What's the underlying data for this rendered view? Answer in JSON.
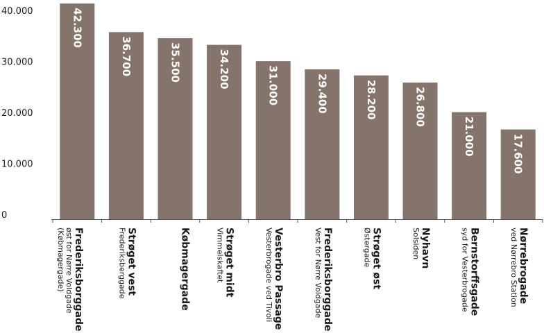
{
  "chart_data": {
    "type": "bar",
    "title": "",
    "xlabel": "",
    "ylabel": "",
    "ylim": [
      0,
      40000
    ],
    "yticks": [
      {
        "value": 0,
        "label": "0"
      },
      {
        "value": 10000,
        "label": "10.000"
      },
      {
        "value": 20000,
        "label": "20.000"
      },
      {
        "value": 30000,
        "label": "30.000"
      },
      {
        "value": 40000,
        "label": "40.000"
      }
    ],
    "bar_color": "#84746b",
    "grid": false,
    "categories": [
      {
        "name": "Frederiksborggade",
        "sub": [
          "øst for Nørre Voldgade",
          "(Købmagergade)"
        ]
      },
      {
        "name": "Strøget vest",
        "sub": [
          "Frederiksberggade"
        ]
      },
      {
        "name": "Købmagergade",
        "sub": []
      },
      {
        "name": "Strøget midt",
        "sub": [
          "Vimmelskaftet"
        ]
      },
      {
        "name": "Vesterbro Passage",
        "sub": [
          "Vesterbrogade ved Tivoli"
        ]
      },
      {
        "name": "Frederiksborggade",
        "sub": [
          "Vest for Nørre Voldgade"
        ]
      },
      {
        "name": "Strøget øst",
        "sub": [
          "Østergade"
        ]
      },
      {
        "name": "Nyhavn",
        "sub": [
          "Solsiden"
        ]
      },
      {
        "name": "Bernstorffsgade",
        "sub": [
          "syd for Vesterbrogade"
        ]
      },
      {
        "name": "Nørrebrogade",
        "sub": [
          "ved Nørrebro Station"
        ]
      }
    ],
    "values": [
      42300,
      36700,
      35500,
      34200,
      31000,
      29400,
      28200,
      26800,
      21000,
      17600
    ],
    "value_labels": [
      "42.300",
      "36.700",
      "35.500",
      "34.200",
      "31.000",
      "29.400",
      "28.200",
      "26.800",
      "21.000",
      "17.600"
    ]
  }
}
